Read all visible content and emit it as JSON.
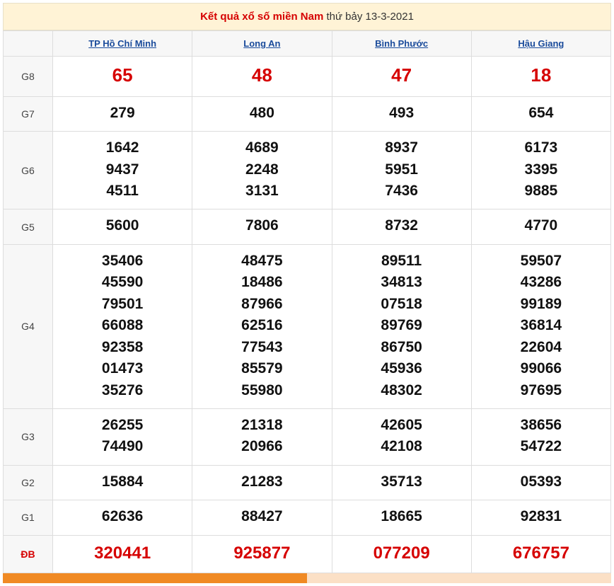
{
  "title": {
    "highlighted": "Kết quả xổ số miền Nam",
    "rest": " thứ bảy 13-3-2021"
  },
  "provinces": [
    "TP Hồ Chí Minh",
    "Long An",
    "Bình Phước",
    "Hậu Giang"
  ],
  "rows": [
    {
      "label": "G8",
      "class": "g8",
      "cells": [
        [
          "65"
        ],
        [
          "48"
        ],
        [
          "47"
        ],
        [
          "18"
        ]
      ]
    },
    {
      "label": "G7",
      "class": "",
      "cells": [
        [
          "279"
        ],
        [
          "480"
        ],
        [
          "493"
        ],
        [
          "654"
        ]
      ]
    },
    {
      "label": "G6",
      "class": "",
      "cells": [
        [
          "1642",
          "9437",
          "4511"
        ],
        [
          "4689",
          "2248",
          "3131"
        ],
        [
          "8937",
          "5951",
          "7436"
        ],
        [
          "6173",
          "3395",
          "9885"
        ]
      ]
    },
    {
      "label": "G5",
      "class": "",
      "cells": [
        [
          "5600"
        ],
        [
          "7806"
        ],
        [
          "8732"
        ],
        [
          "4770"
        ]
      ]
    },
    {
      "label": "G4",
      "class": "",
      "cells": [
        [
          "35406",
          "45590",
          "79501",
          "66088",
          "92358",
          "01473",
          "35276"
        ],
        [
          "48475",
          "18486",
          "87966",
          "62516",
          "77543",
          "85579",
          "55980"
        ],
        [
          "89511",
          "34813",
          "07518",
          "89769",
          "86750",
          "45936",
          "48302"
        ],
        [
          "59507",
          "43286",
          "99189",
          "36814",
          "22604",
          "99066",
          "97695"
        ]
      ]
    },
    {
      "label": "G3",
      "class": "",
      "cells": [
        [
          "26255",
          "74490"
        ],
        [
          "21318",
          "20966"
        ],
        [
          "42605",
          "42108"
        ],
        [
          "38656",
          "54722"
        ]
      ]
    },
    {
      "label": "G2",
      "class": "",
      "cells": [
        [
          "15884"
        ],
        [
          "21283"
        ],
        [
          "35713"
        ],
        [
          "05393"
        ]
      ]
    },
    {
      "label": "G1",
      "class": "",
      "cells": [
        [
          "62636"
        ],
        [
          "88427"
        ],
        [
          "18665"
        ],
        [
          "92831"
        ]
      ]
    },
    {
      "label": "ĐB",
      "class": "db",
      "cells": [
        [
          "320441"
        ],
        [
          "925877"
        ],
        [
          "077209"
        ],
        [
          "676757"
        ]
      ]
    }
  ],
  "colors": {
    "title_bg": "#fff3d6",
    "title_border": "#e8e0c8",
    "red": "#d60000",
    "header_bg": "#f7f7f7",
    "link_blue": "#1a4b9b",
    "cell_border": "#dddddd",
    "text": "#111111",
    "label_text": "#444444",
    "strip_orange": "#f08a24",
    "strip_light": "#fbe0c6"
  },
  "fonts": {
    "title": 15,
    "province_header": 13,
    "row_label": 14,
    "value": 21,
    "g8_value": 26,
    "db_value": 24
  }
}
